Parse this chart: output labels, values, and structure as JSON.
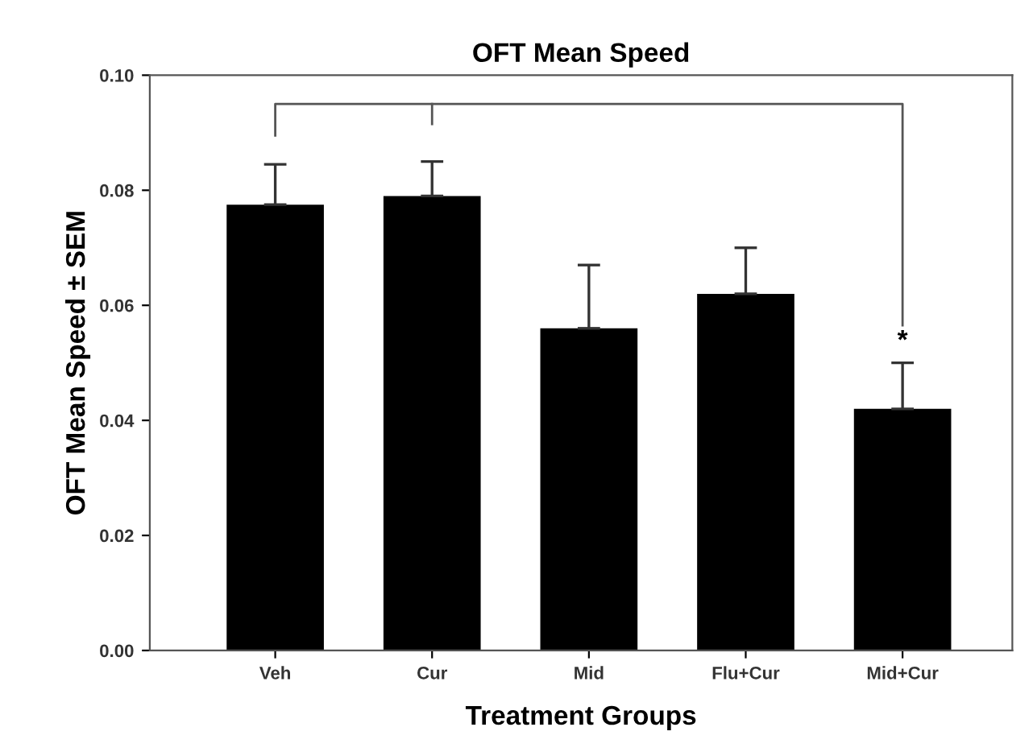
{
  "chart_data": {
    "type": "bar",
    "title": "OFT Mean Speed",
    "xlabel": "Treatment Groups",
    "ylabel": "OFT Mean Speed ± SEM",
    "categories": [
      "Veh",
      "Cur",
      "Mid",
      "Flu+Cur",
      "Mid+Cur"
    ],
    "values": [
      0.0775,
      0.079,
      0.056,
      0.062,
      0.042
    ],
    "errors": [
      [
        0.0775,
        0.0845
      ],
      [
        0.079,
        0.085
      ],
      [
        0.056,
        0.067
      ],
      [
        0.062,
        0.07
      ],
      [
        0.042,
        0.05
      ]
    ],
    "color": "#000000",
    "ylim": [
      0,
      0.1
    ],
    "yticks": [
      {
        "value": 0,
        "label": "0.00"
      },
      {
        "value": 0.02,
        "label": "0.02"
      },
      {
        "value": 0.04,
        "label": "0.04"
      },
      {
        "value": 0.06,
        "label": "0.06"
      },
      {
        "value": 0.08,
        "label": "0.08"
      },
      {
        "value": 0.1,
        "label": "0.10"
      }
    ],
    "grid": false,
    "legend": false,
    "annotations": [
      "*"
    ]
  }
}
